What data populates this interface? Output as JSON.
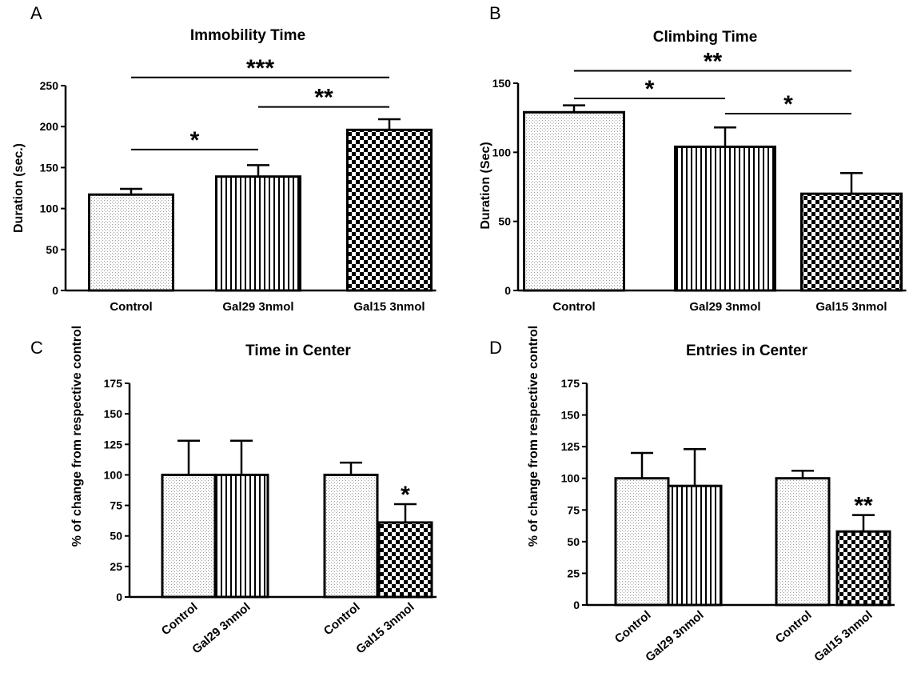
{
  "colors": {
    "ink": "#000000",
    "stipple": "#9a9a9a",
    "background": "#ffffff"
  },
  "chart_data": [
    {
      "panel": "A",
      "type": "bar",
      "title": "Immobility Time",
      "ylabel": "Duration (sec.)",
      "xlabel": "",
      "ylim": [
        0,
        250
      ],
      "yticks": [
        0,
        50,
        100,
        150,
        200,
        250
      ],
      "categories": [
        "Control",
        "Gal29 3nmol",
        "Gal15 3nmol"
      ],
      "values": [
        117,
        139,
        196
      ],
      "errors": [
        7,
        14,
        13
      ],
      "patterns": [
        "stipple",
        "vertical-stripes",
        "checker"
      ],
      "grid": false,
      "significance": [
        {
          "label": "***",
          "from": 0,
          "to": 2,
          "at": 260
        },
        {
          "label": "**",
          "from": 1,
          "to": 2,
          "at": 224
        },
        {
          "label": "*",
          "from": 0,
          "to": 1,
          "at": 172
        }
      ]
    },
    {
      "panel": "B",
      "type": "bar",
      "title": "Climbing Time",
      "ylabel": "Duration (Sec)",
      "xlabel": "",
      "ylim": [
        0,
        150
      ],
      "yticks": [
        0,
        50,
        100,
        150
      ],
      "categories": [
        "Control",
        "Gal29 3nmol",
        "Gal15 3nmol"
      ],
      "values": [
        129,
        104,
        70
      ],
      "errors": [
        5,
        14,
        15
      ],
      "patterns": [
        "stipple",
        "vertical-stripes",
        "checker"
      ],
      "grid": false,
      "significance": [
        {
          "label": "**",
          "from": 0,
          "to": 2,
          "at": 159
        },
        {
          "label": "*",
          "from": 0,
          "to": 1,
          "at": 139
        },
        {
          "label": "*",
          "from": 1,
          "to": 2,
          "at": 128
        }
      ]
    },
    {
      "panel": "C",
      "type": "bar",
      "title": "Time in Center",
      "ylabel": "% of change from respective control",
      "xlabel": "",
      "ylim": [
        0,
        175
      ],
      "yticks": [
        0,
        25,
        50,
        75,
        100,
        125,
        150,
        175
      ],
      "categories": [
        "Control",
        "Gal29 3nmol",
        "Control",
        "Gal15 3nmol"
      ],
      "values": [
        100,
        100,
        100,
        61
      ],
      "errors": [
        28,
        28,
        10,
        15
      ],
      "patterns": [
        "stipple",
        "vertical-stripes",
        "stipple",
        "checker"
      ],
      "grid": false,
      "bar_stars": [
        {
          "label": "*",
          "bar": 3
        }
      ]
    },
    {
      "panel": "D",
      "type": "bar",
      "title": "Entries in Center",
      "ylabel": "% of change from respective control",
      "xlabel": "",
      "ylim": [
        0,
        175
      ],
      "yticks": [
        0,
        25,
        50,
        75,
        100,
        125,
        150,
        175
      ],
      "categories": [
        "Control",
        "Gal29 3nmol",
        "Control",
        "Gal15 3nmol"
      ],
      "values": [
        100,
        94,
        100,
        58
      ],
      "errors": [
        20,
        29,
        6,
        13
      ],
      "patterns": [
        "stipple",
        "vertical-stripes",
        "stipple",
        "checker"
      ],
      "grid": false,
      "bar_stars": [
        {
          "label": "**",
          "bar": 3
        }
      ]
    }
  ]
}
